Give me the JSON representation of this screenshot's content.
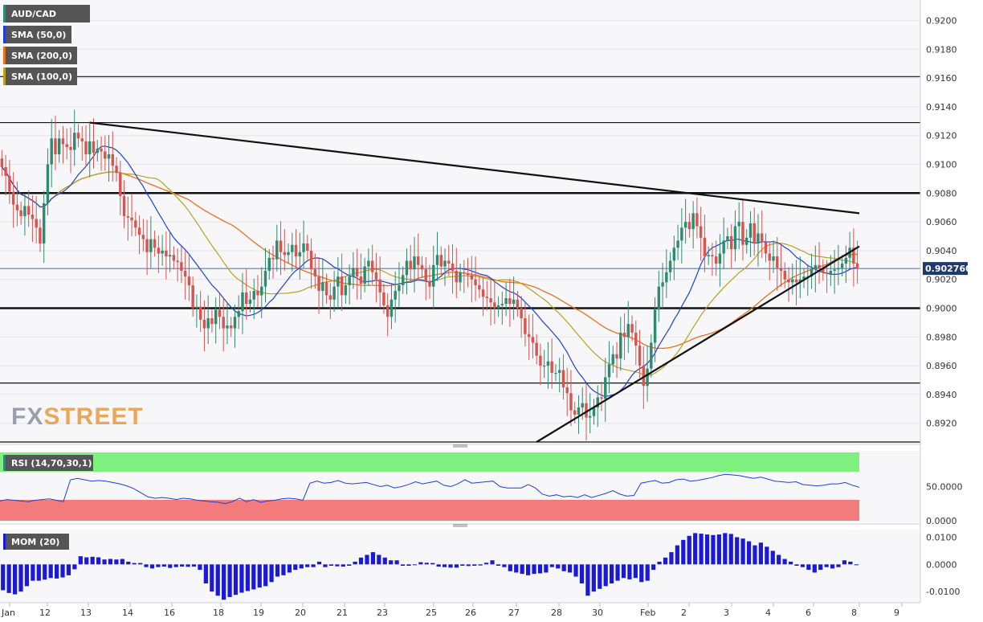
{
  "symbol": "AUD/CAD",
  "indicators": {
    "sma50": "SMA (50,0)",
    "sma200": "SMA (200,0)",
    "sma100": "SMA (100,0)",
    "rsi": "RSI (14,70,30,1)",
    "mom": "MOM (20)"
  },
  "brand": {
    "fx": "FX",
    "street": "STREET"
  },
  "colors": {
    "bull": "#2e8b6f",
    "bear": "#d9534f",
    "sma50": "#1f3fd6",
    "sma200": "#e8701f",
    "sma100": "#b8a020",
    "rsi_line": "#1f3fd6",
    "mom_bar": "#1a1ad6",
    "current_tag": "#1e3a6e",
    "rsi_over": "#7ef07e",
    "rsi_under": "#f47b7b"
  },
  "chart_data": [
    {
      "type": "candlestick",
      "title": "AUD/CAD",
      "x_tick_labels": [
        "Jan",
        "12",
        "13",
        "14",
        "16",
        "18",
        "19",
        "20",
        "21",
        "23",
        "25",
        "26",
        "27",
        "28",
        "30",
        "Feb",
        "2",
        "3",
        "4",
        "6",
        "8",
        "9"
      ],
      "y_tick_labels": [
        "0.9200",
        "0.9180",
        "0.9160",
        "0.9140",
        "0.9120",
        "0.9100",
        "0.9080",
        "0.9060",
        "0.9040",
        "0.9020",
        "0.9000",
        "0.8980",
        "0.8960",
        "0.8940",
        "0.8920"
      ],
      "ylim": [
        0.8907,
        0.9212
      ],
      "current_price": "0.902760",
      "horizontal_levels": [
        0.9161,
        0.9129,
        0.908,
        0.9,
        0.8948,
        0.8907
      ],
      "trendlines": [
        {
          "from": [
            23,
            0.9129
          ],
          "to": [
            224,
            0.9066
          ]
        },
        {
          "from": [
            140,
            0.8907
          ],
          "to": [
            224,
            0.9043
          ]
        }
      ],
      "candles_close": [
        0.9098,
        0.9092,
        0.9081,
        0.9072,
        0.9068,
        0.9064,
        0.9071,
        0.9065,
        0.9062,
        0.9056,
        0.9045,
        0.9073,
        0.91,
        0.9118,
        0.9107,
        0.9118,
        0.9114,
        0.9112,
        0.911,
        0.9122,
        0.9118,
        0.9116,
        0.9107,
        0.9116,
        0.9108,
        0.9111,
        0.9109,
        0.9104,
        0.9107,
        0.9099,
        0.9094,
        0.9078,
        0.9064,
        0.9063,
        0.9061,
        0.9056,
        0.9051,
        0.9048,
        0.9039,
        0.9048,
        0.9042,
        0.9038,
        0.904,
        0.9036,
        0.9037,
        0.9033,
        0.9032,
        0.9026,
        0.9022,
        0.9016,
        0.9,
        0.9001,
        0.8992,
        0.8986,
        0.8993,
        0.8989,
        0.8999,
        0.8994,
        0.8986,
        0.8988,
        0.8986,
        0.8994,
        0.8998,
        0.9011,
        0.9003,
        0.9006,
        0.9012,
        0.9009,
        0.9015,
        0.9026,
        0.9035,
        0.9034,
        0.9047,
        0.9039,
        0.9037,
        0.9039,
        0.9044,
        0.9036,
        0.9039,
        0.9045,
        0.904,
        0.9027,
        0.9022,
        0.9012,
        0.9018,
        0.9009,
        0.9006,
        0.9015,
        0.9022,
        0.9009,
        0.9016,
        0.9022,
        0.9028,
        0.9022,
        0.9017,
        0.9029,
        0.9033,
        0.9025,
        0.902,
        0.9011,
        0.9002,
        0.8994,
        0.9006,
        0.9012,
        0.9016,
        0.9023,
        0.9033,
        0.9027,
        0.9036,
        0.903,
        0.9027,
        0.9019,
        0.9015,
        0.903,
        0.9037,
        0.9029,
        0.9033,
        0.9031,
        0.9026,
        0.9018,
        0.9025,
        0.9024,
        0.9023,
        0.902,
        0.9016,
        0.9013,
        0.9008,
        0.9007,
        0.9004,
        0.9,
        0.9002,
        0.9003,
        0.9007,
        0.9003,
        0.9006,
        0.9,
        0.8993,
        0.8982,
        0.898,
        0.8976,
        0.8967,
        0.896,
        0.896,
        0.8963,
        0.8955,
        0.8955,
        0.8957,
        0.8945,
        0.8941,
        0.8929,
        0.8926,
        0.8931,
        0.8934,
        0.8924,
        0.8925,
        0.8931,
        0.8938,
        0.8937,
        0.8952,
        0.8961,
        0.8968,
        0.8965,
        0.8983,
        0.898,
        0.8989,
        0.8983,
        0.8974,
        0.896,
        0.8946,
        0.8958,
        0.8976,
        0.8999,
        0.9015,
        0.9018,
        0.9025,
        0.9033,
        0.9042,
        0.9047,
        0.9056,
        0.906,
        0.9055,
        0.9066,
        0.9057,
        0.9049,
        0.9036,
        0.9037,
        0.9036,
        0.9031,
        0.9038,
        0.9047,
        0.905,
        0.9041,
        0.9057,
        0.906,
        0.9044,
        0.9049,
        0.9059,
        0.9045,
        0.9052,
        0.9046,
        0.9038,
        0.9033,
        0.9036,
        0.9028,
        0.9026,
        0.902,
        0.9018,
        0.902,
        0.9018,
        0.902,
        0.9022,
        0.9022,
        0.9027,
        0.903,
        0.9028,
        0.9025,
        0.9024,
        0.9026,
        0.9027,
        0.9028,
        0.9031,
        0.9035,
        0.9042,
        0.9031,
        0.9028
      ]
    },
    {
      "type": "line",
      "title": "RSI (14,70,30,1)",
      "y_tick_labels": [
        "50.0000",
        "0.0000"
      ],
      "ylim": [
        0,
        100
      ],
      "overbought": 70,
      "oversold": 30,
      "values": [
        29,
        31,
        30,
        29,
        28,
        30,
        31,
        32,
        30,
        28,
        60,
        62,
        60,
        58,
        59,
        58,
        56,
        54,
        51,
        47,
        41,
        35,
        33,
        34,
        33,
        31,
        33,
        32,
        30,
        29,
        28,
        27,
        25,
        28,
        33,
        28,
        31,
        27,
        29,
        30,
        32,
        33,
        32,
        30,
        55,
        58,
        55,
        56,
        59,
        55,
        54,
        55,
        56,
        53,
        50,
        52,
        48,
        50,
        53,
        57,
        54,
        56,
        58,
        52,
        50,
        54,
        60,
        55,
        56,
        57,
        58,
        50,
        48,
        48,
        48,
        53,
        48,
        39,
        36,
        38,
        35,
        36,
        34,
        38,
        34,
        37,
        40,
        44,
        39,
        36,
        37,
        55,
        57,
        59,
        55,
        56,
        60,
        61,
        58,
        59,
        61,
        63,
        66,
        68,
        67,
        66,
        64,
        62,
        64,
        61,
        58,
        57,
        56,
        57,
        53,
        52,
        51,
        52,
        54,
        54,
        56,
        52,
        49
      ]
    },
    {
      "type": "bar",
      "title": "MOM (20)",
      "y_tick_labels": [
        "0.0100",
        "0.0000",
        "-0.0100"
      ],
      "ylim": [
        -0.0135,
        0.0125
      ],
      "values": [
        -0.0095,
        -0.0105,
        -0.011,
        -0.01,
        -0.008,
        -0.006,
        -0.006,
        -0.0056,
        -0.005,
        -0.0052,
        -0.0048,
        -0.004,
        -0.0018,
        0.003,
        0.0026,
        0.0028,
        0.0026,
        0.0018,
        0.002,
        0.0018,
        0.002,
        0.001,
        0.0005,
        0.0005,
        -0.001,
        -0.0015,
        -0.001,
        -0.0008,
        -0.0013,
        -0.001,
        -0.0008,
        -0.0009,
        -0.0008,
        -0.002,
        -0.007,
        -0.01,
        -0.0115,
        -0.013,
        -0.012,
        -0.0112,
        -0.0104,
        -0.0098,
        -0.0092,
        -0.0085,
        -0.008,
        -0.0065,
        -0.0045,
        -0.004,
        -0.003,
        -0.002,
        -0.0015,
        -0.001,
        -0.001,
        0.001,
        -0.001,
        -0.0005,
        -0.0007,
        -0.0008,
        -0.0005,
        0.001,
        0.0025,
        0.0035,
        0.0045,
        0.0035,
        0.0025,
        0.0015,
        0.0015,
        -0.0005,
        -0.0005,
        -0.0002,
        0.0008,
        0.0006,
        0.0005,
        -0.0008,
        -0.001,
        -0.0012,
        -0.0012,
        -0.0005,
        -0.0006,
        -0.0005,
        -0.0004,
        0.0006,
        0.0015,
        -0.0005,
        -0.001,
        -0.0025,
        -0.003,
        -0.0035,
        -0.004,
        -0.0035,
        -0.0033,
        -0.003,
        -0.001,
        -0.0015,
        -0.0025,
        -0.003,
        -0.0045,
        -0.007,
        -0.0115,
        -0.01,
        -0.009,
        -0.008,
        -0.007,
        -0.006,
        -0.005,
        -0.0055,
        -0.005,
        -0.0065,
        -0.006,
        -0.002,
        0.001,
        0.0025,
        0.0045,
        0.007,
        0.009,
        0.0105,
        0.0115,
        0.0113,
        0.011,
        0.0108,
        0.011,
        0.0115,
        0.0112,
        0.01,
        0.0095,
        0.0085,
        0.007,
        0.008,
        0.0065,
        0.005,
        0.0035,
        0.002,
        0.001,
        -0.0005,
        -0.001,
        -0.002,
        -0.003,
        -0.002,
        -0.001,
        -0.0015,
        -0.001,
        0.0015,
        0.001,
        -0.0003
      ]
    }
  ]
}
